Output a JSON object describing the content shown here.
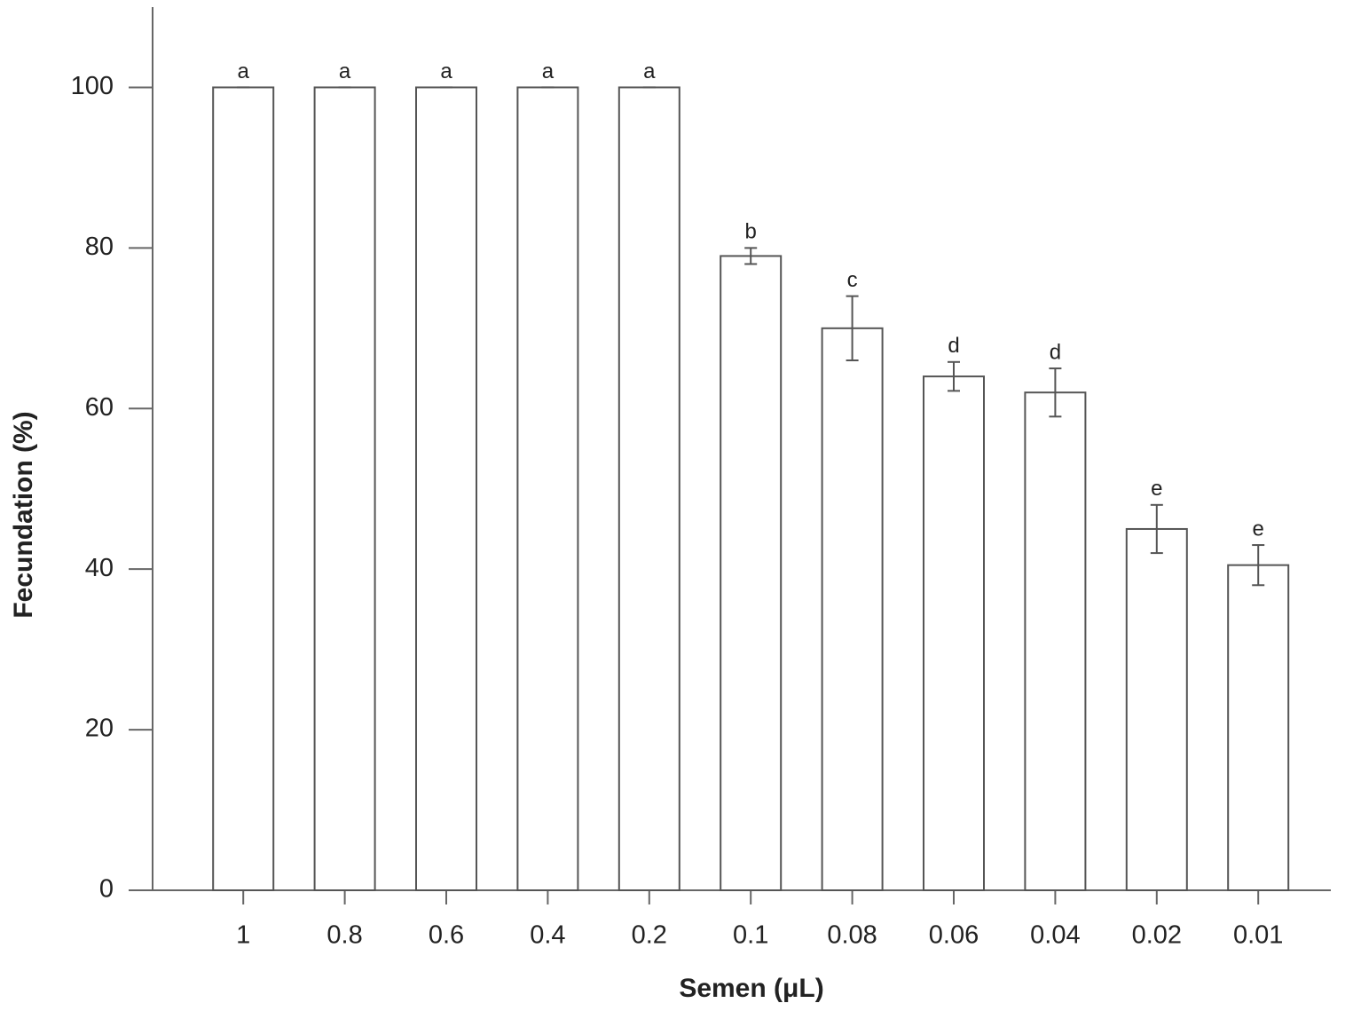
{
  "chart_data": {
    "type": "bar",
    "x_label": "Semen (μL)",
    "y_label": "Fecundation (%)",
    "categories": [
      "1",
      "0.8",
      "0.6",
      "0.4",
      "0.2",
      "0.1",
      "0.08",
      "0.06",
      "0.04",
      "0.02",
      "0.01"
    ],
    "values": [
      100,
      100,
      100,
      100,
      100,
      79,
      70,
      64,
      62,
      45,
      40.5
    ],
    "errors": [
      0,
      0,
      0,
      0,
      0,
      1,
      4,
      1.8,
      3,
      3,
      2.5
    ],
    "labels": [
      "a",
      "a",
      "a",
      "a",
      "a",
      "b",
      "c",
      "d",
      "d",
      "e",
      "e"
    ],
    "color": "#ffffff",
    "edgecolor": "#555555",
    "ylim": [
      0,
      110
    ],
    "yticks": [
      0,
      20,
      40,
      60,
      80,
      100
    ],
    "grid": false
  }
}
